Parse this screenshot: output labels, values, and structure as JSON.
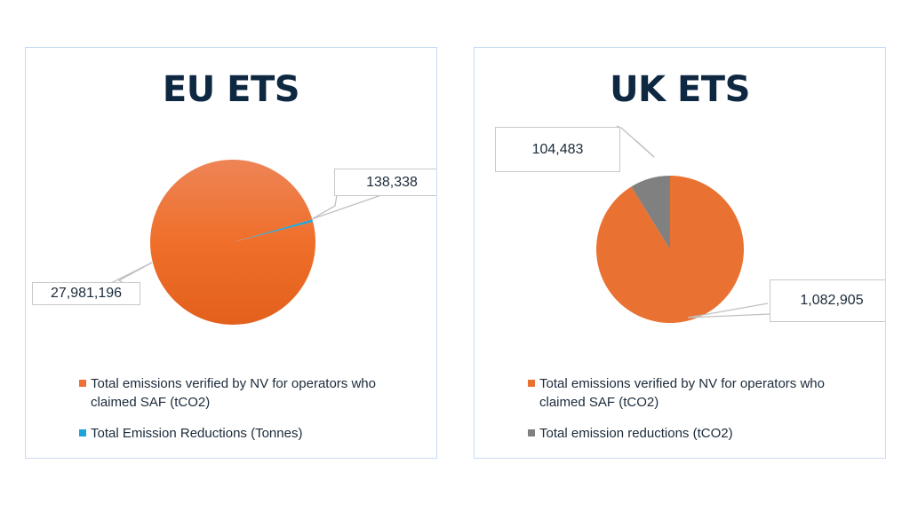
{
  "chart_data": [
    {
      "type": "pie",
      "title": "EU ETS",
      "categories": [
        "Total emissions verified by NV for operators who claimed SAF (tCO2)",
        "Total Emission Reductions (Tonnes)"
      ],
      "values": [
        27981196,
        138338
      ],
      "data_labels": [
        "27,981,196",
        "138,338"
      ],
      "colors": [
        "#ee7235",
        "#1fa3dc"
      ],
      "legend": "bottom"
    },
    {
      "type": "pie",
      "title": "UK ETS",
      "categories": [
        "Total emissions verified by NV for operators who claimed SAF (tCO2)",
        "Total emission reductions (tCO2)"
      ],
      "values": [
        1082905,
        104483
      ],
      "data_labels": [
        "1,082,905",
        "104,483"
      ],
      "colors": [
        "#e97132",
        "#808080"
      ],
      "legend": "bottom"
    }
  ]
}
